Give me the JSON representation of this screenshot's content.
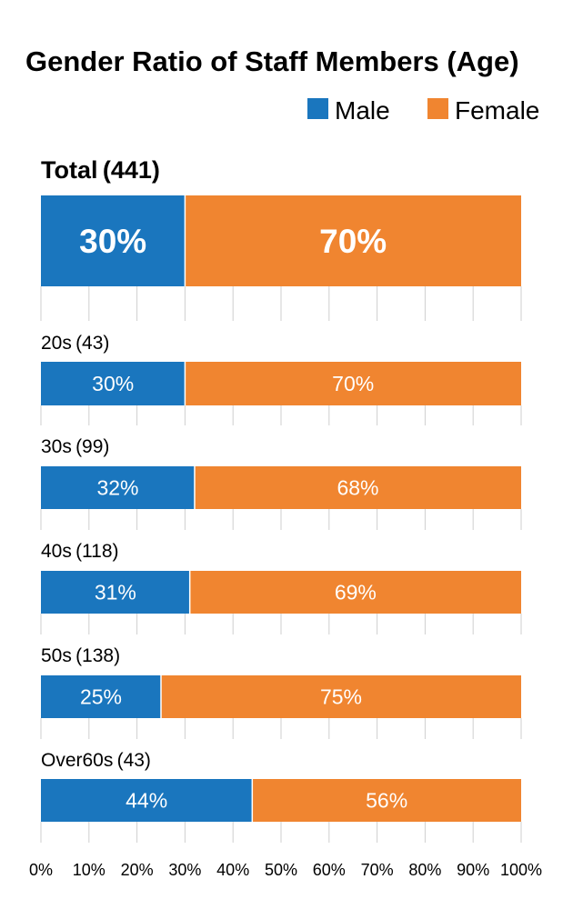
{
  "chart_data": {
    "type": "bar",
    "orientation": "horizontal-stacked-100",
    "title": "Gender Ratio of Staff Members (Age)",
    "legend": {
      "placement": "top-right"
    },
    "series": [
      {
        "name": "Male",
        "color": "#1a76be"
      },
      {
        "name": "Female",
        "color": "#f08530"
      }
    ],
    "groups": [
      {
        "label": "Total (441)",
        "male": 30,
        "female": 70,
        "male_label": "30%",
        "female_label": "70%"
      },
      {
        "label": "20s (43)",
        "male": 30,
        "female": 70,
        "male_label": "30%",
        "female_label": "70%"
      },
      {
        "label": "30s (99)",
        "male": 32,
        "female": 68,
        "male_label": "32%",
        "female_label": "68%"
      },
      {
        "label": "40s (118)",
        "male": 31,
        "female": 69,
        "male_label": "31%",
        "female_label": "69%"
      },
      {
        "label": "50s (138)",
        "male": 25,
        "female": 75,
        "male_label": "25%",
        "female_label": "75%"
      },
      {
        "label": "Over60s (43)",
        "male": 44,
        "female": 56,
        "male_label": "44%",
        "female_label": "56%"
      }
    ],
    "xlim": [
      0,
      100
    ],
    "xticks": [
      "0%",
      "10%",
      "20%",
      "30%",
      "40%",
      "50%",
      "60%",
      "70%",
      "80%",
      "90%",
      "100%"
    ]
  }
}
